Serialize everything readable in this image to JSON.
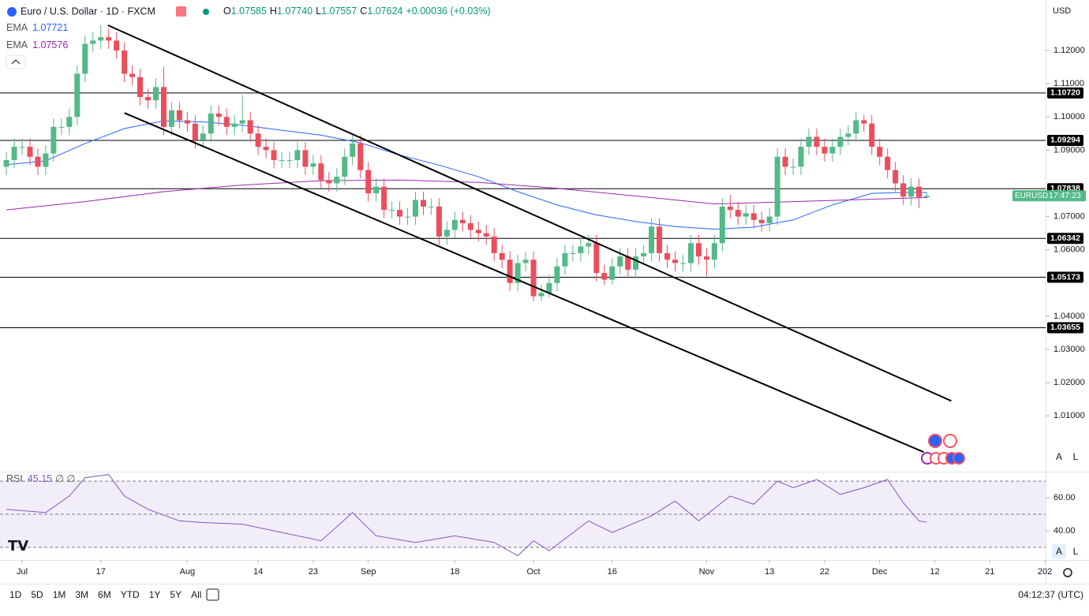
{
  "header": {
    "title": "Euro / U.S. Dollar · 1D · FXCM",
    "o_label": "O",
    "open": "1.07585",
    "h_label": "H",
    "high": "1.07740",
    "l_label": "L",
    "low": "1.07557",
    "c_label": "C",
    "close": "1.07624",
    "change": "+0.00036 (+0.03%)"
  },
  "currency": "USD",
  "symbol_tag": "EURUSD",
  "countdown": "17:47:23",
  "scale_buttons": [
    "A",
    "L"
  ],
  "timeframes": [
    "1D",
    "5D",
    "1M",
    "3M",
    "6M",
    "YTD",
    "1Y",
    "5Y",
    "All"
  ],
  "clock": "04:12:37 (UTC)",
  "chart_data": [
    {
      "type": "candlestick",
      "up_color": "#53b987",
      "down_color": "#eb4d5c",
      "xlim": [
        -0.81,
        132.09
      ],
      "ylim": [
        0.9932,
        1.1352
      ],
      "yticks": [
        {
          "value": 1.12,
          "label": "1.12000"
        },
        {
          "value": 1.11,
          "label": "1.11000"
        },
        {
          "value": 1.1,
          "label": "1.10000"
        },
        {
          "value": 1.09,
          "label": "1.09000"
        },
        {
          "value": 1.07,
          "label": "1.07000"
        },
        {
          "value": 1.06,
          "label": "1.06000"
        },
        {
          "value": 1.04,
          "label": "1.04000"
        },
        {
          "value": 1.03,
          "label": "1.03000"
        },
        {
          "value": 1.02,
          "label": "1.02000"
        },
        {
          "value": 1.01,
          "label": "1.01000"
        }
      ],
      "xticks": [
        {
          "value": 2,
          "label": "Jul"
        },
        {
          "value": 12,
          "label": "17"
        },
        {
          "value": 23,
          "label": "Aug"
        },
        {
          "value": 32,
          "label": "14"
        },
        {
          "value": 39,
          "label": "23"
        },
        {
          "value": 46,
          "label": "Sep"
        },
        {
          "value": 57,
          "label": "18"
        },
        {
          "value": 67,
          "label": "Oct"
        },
        {
          "value": 77,
          "label": "16"
        },
        {
          "value": 89,
          "label": "Nov"
        },
        {
          "value": 97,
          "label": "13"
        },
        {
          "value": 104,
          "label": "22"
        },
        {
          "value": 111,
          "label": "Dec"
        },
        {
          "value": 118,
          "label": "12"
        },
        {
          "value": 125,
          "label": "21"
        },
        {
          "value": 132,
          "label": "202"
        }
      ],
      "levels": [
        {
          "value": 1.1072,
          "label": "1.10720"
        },
        {
          "value": 1.09294,
          "label": "1.09294"
        },
        {
          "value": 1.07838,
          "label": "1.07838"
        },
        {
          "value": 1.06342,
          "label": "1.06342"
        },
        {
          "value": 1.05173,
          "label": "1.05173"
        },
        {
          "value": 1.03655,
          "label": "1.03655"
        }
      ],
      "trend_lines": [
        {
          "x": [
            12.9,
            120.1
          ],
          "values": [
            1.1276,
            1.0145
          ]
        },
        {
          "x": [
            15.0,
            116.6
          ],
          "values": [
            1.1012,
            0.9991
          ]
        }
      ],
      "open": [
        1.085,
        1.087,
        1.091,
        1.091,
        1.088,
        1.085,
        1.089,
        1.097,
        1.097,
        1.1,
        1.113,
        1.122,
        1.123,
        1.124,
        1.123,
        1.12,
        1.113,
        1.112,
        1.106,
        1.105,
        1.109,
        1.097,
        1.102,
        1.099,
        1.098,
        1.093,
        1.095,
        1.101,
        1.1,
        1.097,
        1.098,
        1.099,
        1.095,
        1.091,
        1.09,
        1.087,
        1.087,
        1.087,
        1.09,
        1.085,
        1.086,
        1.081,
        1.08,
        1.082,
        1.088,
        1.092,
        1.084,
        1.077,
        1.079,
        1.072,
        1.072,
        1.07,
        1.07,
        1.075,
        1.073,
        1.073,
        1.064,
        1.066,
        1.069,
        1.068,
        1.066,
        1.065,
        1.064,
        1.059,
        1.057,
        1.05,
        1.056,
        1.057,
        1.046,
        1.047,
        1.05,
        1.055,
        1.059,
        1.059,
        1.061,
        1.062,
        1.053,
        1.051,
        1.055,
        1.058,
        1.054,
        1.058,
        1.059,
        1.067,
        1.059,
        1.057,
        1.056,
        1.056,
        1.062,
        1.058,
        1.057,
        1.062,
        1.073,
        1.072,
        1.07,
        1.071,
        1.069,
        1.068,
        1.07,
        1.088,
        1.085,
        1.085,
        1.091,
        1.094,
        1.091,
        1.089,
        1.091,
        1.094,
        1.095,
        1.099,
        1.098,
        1.091,
        1.088,
        1.084,
        1.08,
        1.076,
        1.079,
        1.07585
      ],
      "high": [
        1.0895,
        1.0935,
        1.0935,
        1.0935,
        1.0905,
        1.0915,
        1.0995,
        1.0995,
        1.1025,
        1.1155,
        1.1245,
        1.1255,
        1.1276,
        1.1265,
        1.1255,
        1.1225,
        1.1155,
        1.1145,
        1.1085,
        1.1115,
        1.115,
        1.1045,
        1.1045,
        1.1015,
        1.1005,
        1.0975,
        1.1035,
        1.1035,
        1.1025,
        1.1005,
        1.1065,
        1.1015,
        1.0975,
        1.0935,
        1.0925,
        1.0895,
        1.0895,
        1.0925,
        1.0925,
        1.0885,
        1.0885,
        1.0835,
        1.0845,
        1.0905,
        1.0945,
        1.0945,
        1.0865,
        1.0815,
        1.0815,
        1.0745,
        1.0745,
        1.0725,
        1.0775,
        1.0775,
        1.0755,
        1.0755,
        1.0685,
        1.0715,
        1.0715,
        1.0705,
        1.0685,
        1.0675,
        1.0665,
        1.0615,
        1.0595,
        1.0585,
        1.0595,
        1.0595,
        1.0495,
        1.0525,
        1.0575,
        1.0615,
        1.0615,
        1.0635,
        1.0645,
        1.0645,
        1.0555,
        1.0575,
        1.0605,
        1.0605,
        1.0605,
        1.0615,
        1.0695,
        1.0695,
        1.0615,
        1.0595,
        1.0585,
        1.0645,
        1.0645,
        1.0605,
        1.0645,
        1.0755,
        1.0765,
        1.0745,
        1.0735,
        1.0735,
        1.0715,
        1.0725,
        1.0905,
        1.0905,
        1.0875,
        1.0935,
        1.0965,
        1.0965,
        1.0935,
        1.0935,
        1.0965,
        1.0975,
        1.1015,
        1.1005,
        1.1005,
        1.0935,
        1.0905,
        1.0865,
        1.0825,
        1.0815,
        1.0815,
        1.0774
      ],
      "low": [
        1.0825,
        1.0845,
        1.0885,
        1.0855,
        1.0825,
        1.0825,
        1.0865,
        1.0945,
        1.0945,
        1.0975,
        1.1105,
        1.1195,
        1.1205,
        1.1205,
        1.1175,
        1.1105,
        1.1095,
        1.1035,
        1.1025,
        1.1025,
        1.0945,
        1.0945,
        1.0965,
        1.0955,
        1.0905,
        1.0905,
        1.0925,
        1.0975,
        1.0945,
        1.0945,
        1.0955,
        1.0925,
        1.0885,
        1.0875,
        1.0845,
        1.0845,
        1.0845,
        1.0845,
        1.0825,
        1.0825,
        1.0785,
        1.0775,
        1.0775,
        1.0795,
        1.0855,
        1.0815,
        1.0745,
        1.0745,
        1.0695,
        1.0695,
        1.0675,
        1.0675,
        1.0675,
        1.0705,
        1.0705,
        1.0615,
        1.0615,
        1.0635,
        1.0655,
        1.0635,
        1.0625,
        1.0615,
        1.0565,
        1.0545,
        1.0475,
        1.0475,
        1.0535,
        1.0445,
        1.0445,
        1.0455,
        1.0475,
        1.0525,
        1.0565,
        1.0565,
        1.0585,
        1.0505,
        1.0495,
        1.0495,
        1.0525,
        1.0515,
        1.0515,
        1.0555,
        1.0565,
        1.0565,
        1.0545,
        1.0535,
        1.0535,
        1.0535,
        1.0555,
        1.052,
        1.0545,
        1.0595,
        1.0695,
        1.0675,
        1.0675,
        1.0665,
        1.0655,
        1.0655,
        1.0675,
        1.0825,
        1.0825,
        1.0825,
        1.0885,
        1.0885,
        1.0865,
        1.0865,
        1.0885,
        1.0915,
        1.0925,
        1.0955,
        1.0885,
        1.0855,
        1.0815,
        1.0775,
        1.0735,
        1.0735,
        1.0725,
        1.07557
      ],
      "close": [
        1.087,
        1.091,
        1.091,
        1.088,
        1.085,
        1.089,
        1.097,
        1.097,
        1.1,
        1.113,
        1.122,
        1.123,
        1.124,
        1.123,
        1.12,
        1.113,
        1.112,
        1.106,
        1.105,
        1.109,
        1.097,
        1.102,
        1.099,
        1.098,
        1.093,
        1.095,
        1.101,
        1.1,
        1.097,
        1.098,
        1.099,
        1.095,
        1.091,
        1.09,
        1.087,
        1.087,
        1.087,
        1.09,
        1.085,
        1.086,
        1.081,
        1.08,
        1.082,
        1.088,
        1.092,
        1.084,
        1.077,
        1.079,
        1.072,
        1.072,
        1.07,
        1.07,
        1.075,
        1.073,
        1.073,
        1.064,
        1.066,
        1.069,
        1.068,
        1.066,
        1.065,
        1.064,
        1.059,
        1.057,
        1.05,
        1.056,
        1.057,
        1.046,
        1.047,
        1.05,
        1.055,
        1.059,
        1.059,
        1.061,
        1.062,
        1.053,
        1.051,
        1.055,
        1.058,
        1.054,
        1.058,
        1.059,
        1.067,
        1.059,
        1.057,
        1.056,
        1.056,
        1.062,
        1.058,
        1.057,
        1.062,
        1.073,
        1.072,
        1.07,
        1.071,
        1.069,
        1.068,
        1.07,
        1.088,
        1.085,
        1.085,
        1.091,
        1.094,
        1.091,
        1.089,
        1.091,
        1.094,
        1.095,
        1.099,
        1.098,
        1.091,
        1.088,
        1.084,
        1.08,
        1.076,
        1.079,
        1.07588,
        1.07624
      ],
      "series": [
        {
          "name": "EMA",
          "color": "#2962ff",
          "last_label": "1.07721",
          "x": [
            0,
            5,
            10,
            15,
            20,
            25,
            30,
            35,
            40,
            45,
            50,
            55,
            60,
            65,
            70,
            75,
            80,
            85,
            90,
            95,
            100,
            105,
            110,
            115,
            117
          ],
          "values": [
            1.0856,
            1.0868,
            1.092,
            1.0965,
            1.0988,
            1.0985,
            1.0975,
            1.096,
            1.0945,
            1.0922,
            1.0885,
            1.0855,
            1.082,
            1.0775,
            1.0735,
            1.0705,
            1.0685,
            1.067,
            1.0662,
            1.0668,
            1.069,
            1.0735,
            1.077,
            1.0773,
            1.07721
          ]
        },
        {
          "name": "EMA",
          "color": "#9c27b0",
          "last_label": "1.07576",
          "x": [
            0,
            10,
            20,
            30,
            40,
            50,
            60,
            70,
            80,
            90,
            100,
            110,
            117
          ],
          "values": [
            1.072,
            1.0745,
            1.0775,
            1.0795,
            1.0808,
            1.081,
            1.0803,
            1.0785,
            1.0762,
            1.0738,
            1.0745,
            1.0752,
            1.07576
          ]
        }
      ]
    },
    {
      "type": "line",
      "title": "RSI",
      "value_label": "45.15",
      "flags": "∅ ∅",
      "color": "#7e57c2",
      "xlim": [
        -0.81,
        132.09
      ],
      "ylim": [
        22.4,
        75.7
      ],
      "yticks": [
        {
          "value": 60,
          "label": "60.00"
        },
        {
          "value": 40,
          "label": "40.00"
        }
      ],
      "levels": [
        70,
        50,
        30
      ],
      "x": [
        0,
        5,
        8,
        10,
        13,
        15,
        18,
        22,
        25,
        30,
        35,
        40,
        44,
        47,
        52,
        57,
        62,
        65,
        67,
        69,
        74,
        77,
        82,
        85,
        88,
        92,
        95,
        98,
        100,
        103,
        106,
        109,
        112,
        114,
        116,
        117
      ],
      "values": [
        53,
        51,
        61,
        72,
        74,
        61,
        53,
        46,
        45,
        44,
        39,
        34,
        51,
        37,
        33,
        37,
        33,
        25,
        34,
        28,
        46,
        39,
        49,
        58,
        46,
        61,
        56,
        70,
        66,
        71,
        62,
        66,
        71,
        57,
        46,
        45.15
      ]
    }
  ]
}
